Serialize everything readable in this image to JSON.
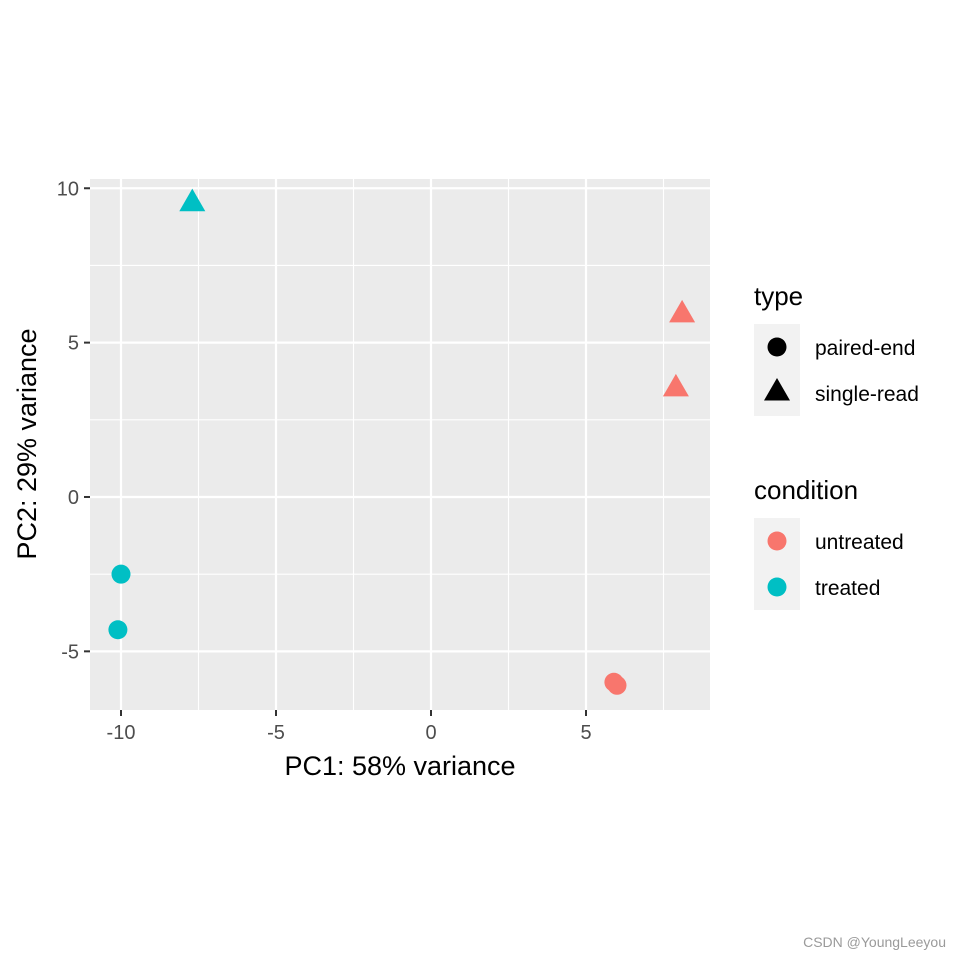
{
  "chart_data": {
    "type": "scatter",
    "xlabel": "PC1: 58% variance",
    "ylabel": "PC2: 29% variance",
    "xlim": [
      -11.0,
      9.0
    ],
    "ylim": [
      -6.9,
      10.3
    ],
    "x_major_ticks": [
      -10,
      -5,
      0,
      5
    ],
    "x_tick_labels": [
      "-10",
      "-5",
      "0",
      "5"
    ],
    "y_major_ticks": [
      -5,
      0,
      5,
      10
    ],
    "y_tick_labels": [
      "-5",
      "0",
      "5",
      "10"
    ],
    "x_minor_ticks": [
      -7.5,
      -2.5,
      2.5,
      7.5
    ],
    "y_minor_ticks": [
      -2.5,
      2.5,
      7.5
    ],
    "grid": true,
    "panel_background": "#ebebeb",
    "grid_color": "#ffffff",
    "legend_position": "right",
    "legends": [
      {
        "title": "type",
        "kind": "shape",
        "entries": [
          {
            "label": "paired-end",
            "shape": "circle"
          },
          {
            "label": "single-read",
            "shape": "triangle"
          }
        ]
      },
      {
        "title": "condition",
        "kind": "color",
        "entries": [
          {
            "label": "untreated",
            "color": "#F8766D"
          },
          {
            "label": "treated",
            "color": "#00BFC4"
          }
        ]
      }
    ],
    "points": [
      {
        "x": -7.7,
        "y": 9.5,
        "type": "single-read",
        "condition": "treated"
      },
      {
        "x": -10.0,
        "y": -2.5,
        "type": "paired-end",
        "condition": "treated"
      },
      {
        "x": -10.1,
        "y": -4.3,
        "type": "paired-end",
        "condition": "treated"
      },
      {
        "x": 8.1,
        "y": 5.9,
        "type": "single-read",
        "condition": "untreated"
      },
      {
        "x": 7.9,
        "y": 3.5,
        "type": "single-read",
        "condition": "untreated"
      },
      {
        "x": 5.9,
        "y": -6.0,
        "type": "paired-end",
        "condition": "untreated"
      },
      {
        "x": 6.0,
        "y": -6.1,
        "type": "paired-end",
        "condition": "untreated"
      }
    ]
  },
  "watermark": "CSDN @YoungLeeyou"
}
